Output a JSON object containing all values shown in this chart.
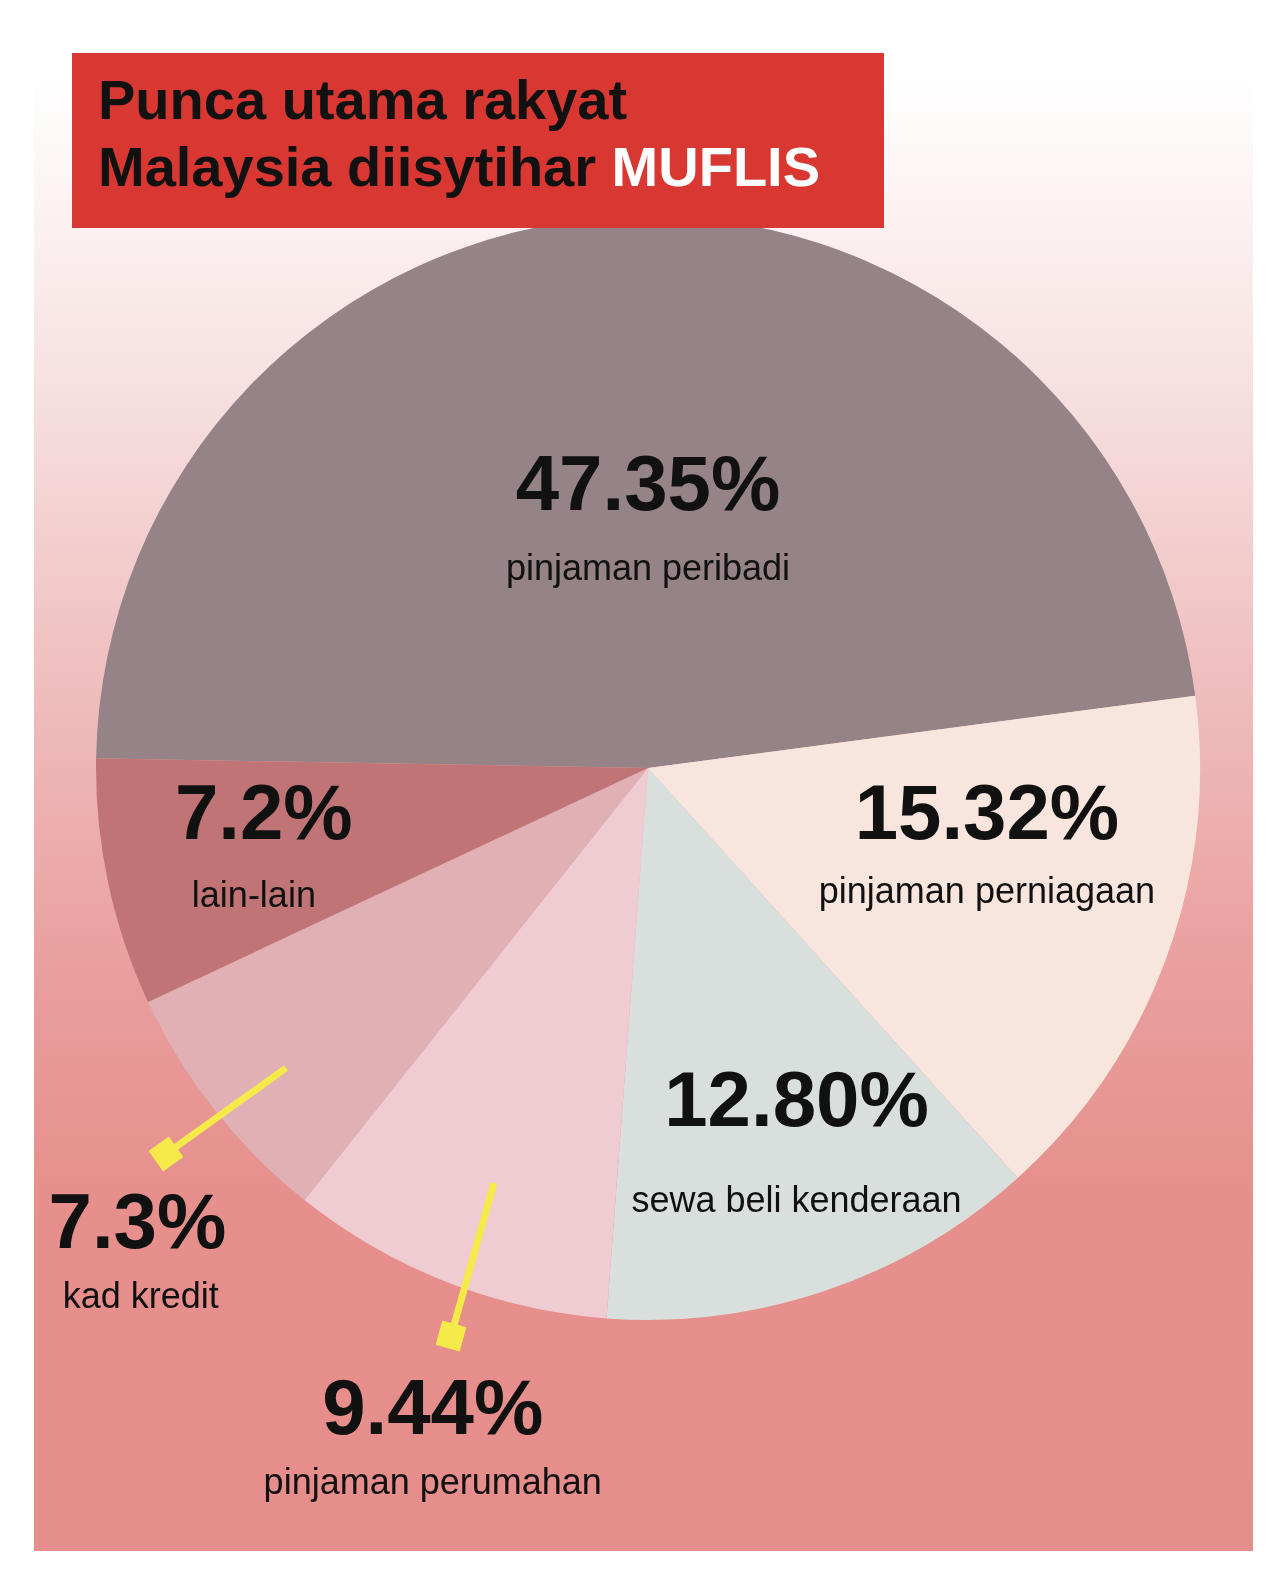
{
  "chart_data": {
    "type": "pie",
    "title": "Punca utama rakyat Malaysia diisytihar MUFLIS",
    "categories": [
      "pinjaman peribadi",
      "pinjaman perniagaan",
      "sewa beli kenderaan",
      "pinjaman perumahan",
      "kad kredit",
      "lain-lain"
    ],
    "values": [
      47.35,
      15.32,
      12.8,
      9.44,
      7.3,
      7.2
    ],
    "value_labels": [
      "47.35%",
      "15.32%",
      "12.80%",
      "9.44%",
      "7.3%",
      "7.2%"
    ],
    "colors": [
      "#958387",
      "#f8e6de",
      "#d9dfdd",
      "#efcbd2",
      "#e0b0b5",
      "#c07476"
    ]
  }
}
